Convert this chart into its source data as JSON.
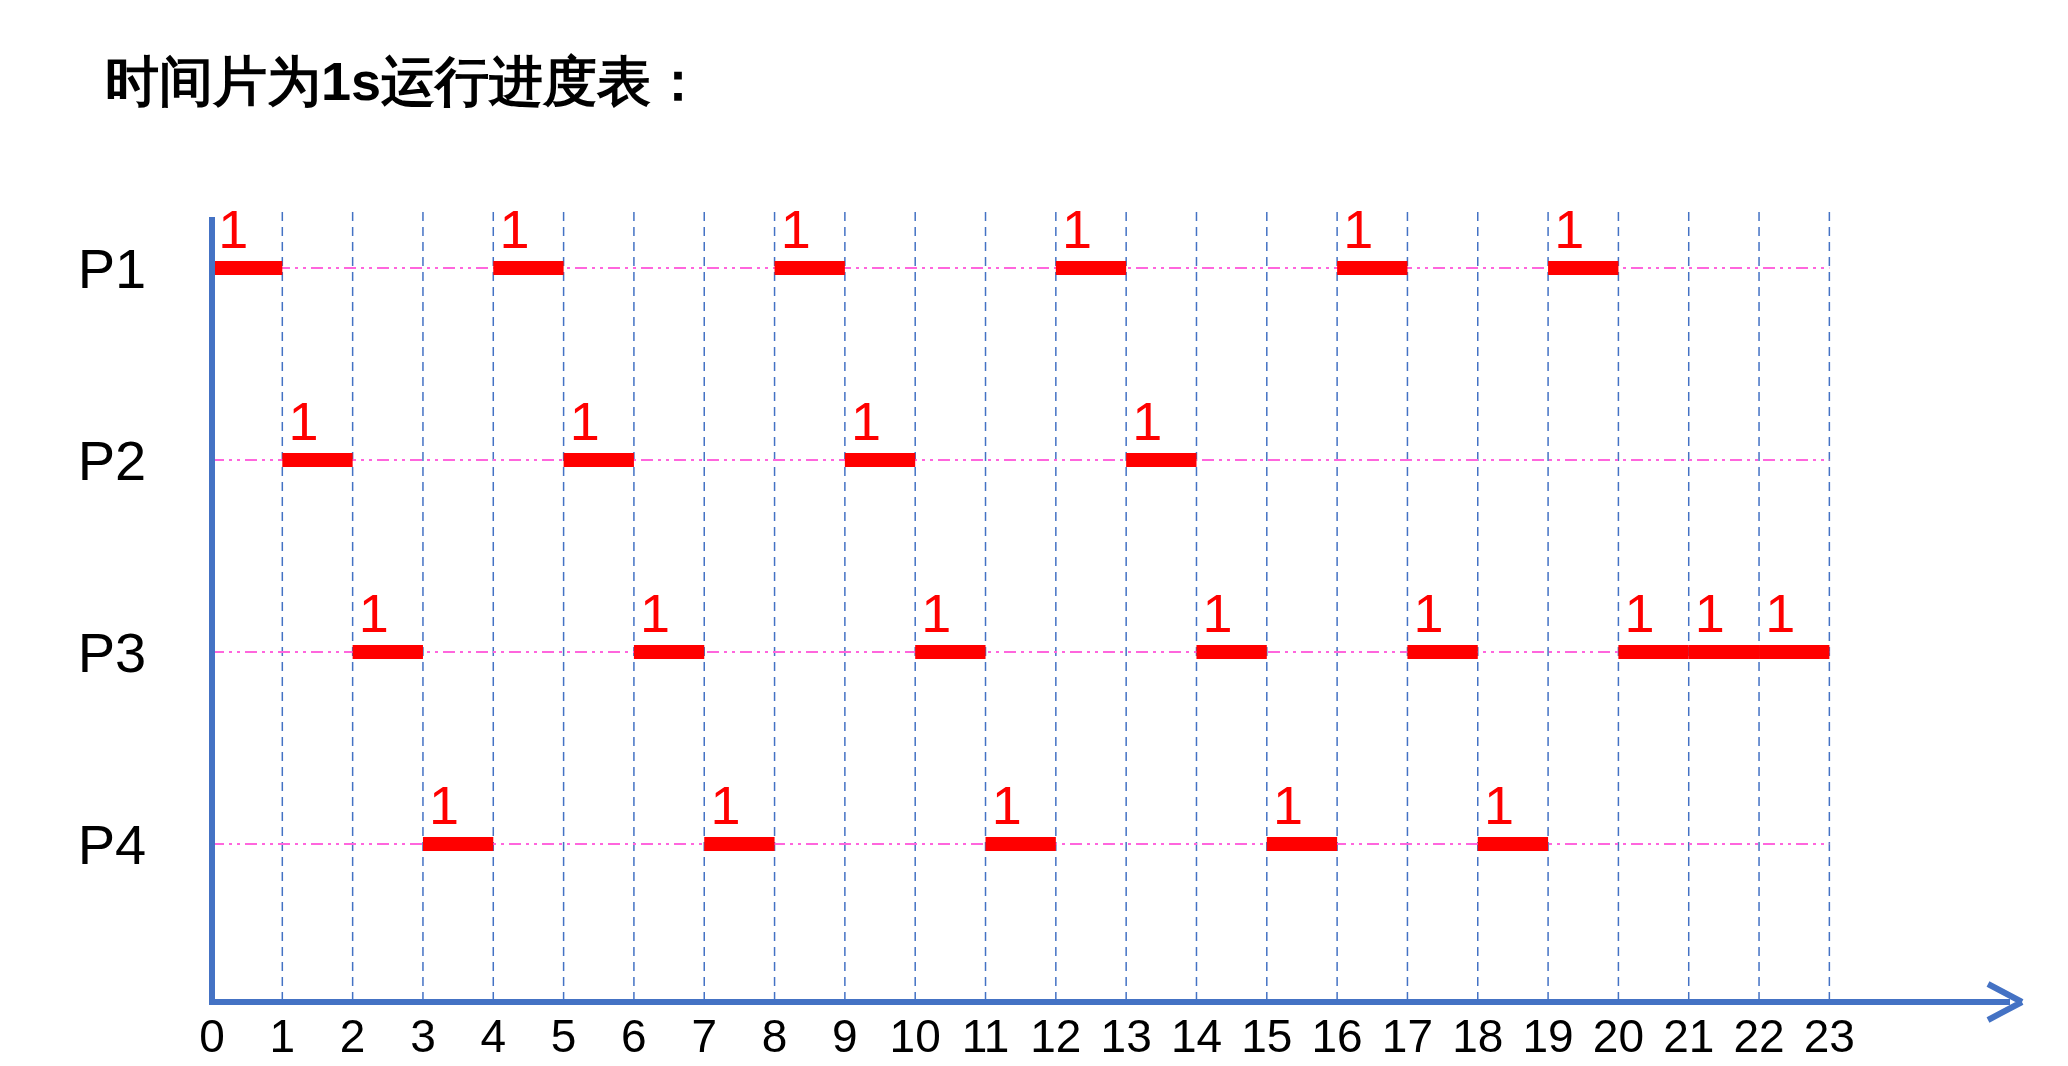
{
  "chart_data": {
    "type": "bar",
    "orientation": "horizontal",
    "title": "时间片为1s运行进度表：",
    "categories": [
      "P1",
      "P2",
      "P3",
      "P4"
    ],
    "series": [
      {
        "color": "#ff0000",
        "values": [
          1,
          1,
          1,
          1
        ],
        "base": [
          0,
          1,
          2,
          3
        ]
      },
      {
        "color": "#ff0000",
        "values": [
          1,
          1,
          1,
          1
        ],
        "base": [
          4,
          5,
          6,
          7
        ]
      },
      {
        "color": "#ff0000",
        "values": [
          1,
          1,
          1,
          1
        ],
        "base": [
          8,
          9,
          10,
          11
        ]
      },
      {
        "color": "#ff0000",
        "values": [
          1,
          1,
          1,
          1
        ],
        "base": [
          12,
          13,
          14,
          15
        ]
      },
      {
        "color": "#ff0000",
        "values": [
          1,
          null,
          1,
          1
        ],
        "base": [
          16,
          null,
          17,
          18
        ]
      },
      {
        "color": "#ff0000",
        "values": [
          1,
          null,
          1,
          null
        ],
        "base": [
          19,
          null,
          20,
          null
        ]
      },
      {
        "color": "#ff0000",
        "values": [
          null,
          null,
          1,
          null
        ],
        "base": [
          null,
          null,
          21,
          null
        ]
      },
      {
        "color": "#ff0000",
        "values": [
          null,
          null,
          1,
          null
        ],
        "base": [
          null,
          null,
          22,
          null
        ]
      }
    ],
    "xlim": [
      0,
      25
    ],
    "xticks": [
      0,
      1,
      2,
      3,
      4,
      5,
      6,
      7,
      8,
      9,
      10,
      11,
      12,
      13,
      14,
      15,
      16,
      17,
      18,
      19,
      20,
      21,
      22,
      23
    ],
    "grid": true,
    "data_labels": true
  }
}
